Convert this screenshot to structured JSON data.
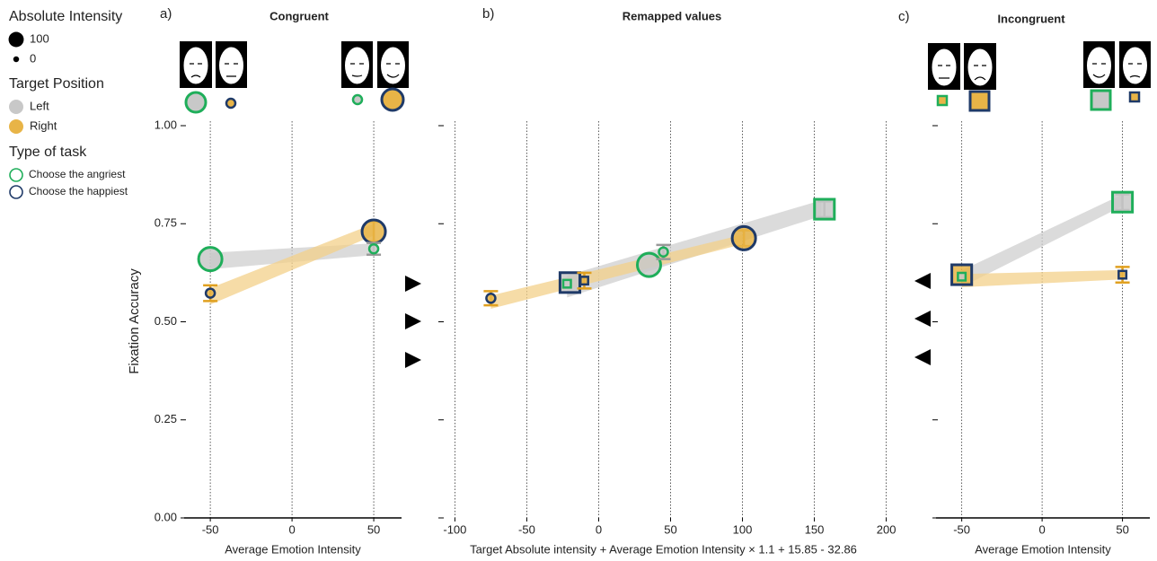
{
  "legend": {
    "size_title": "Absolute Intensity",
    "sizes": [
      100,
      0
    ],
    "position_title": "Target Position",
    "positions": [
      {
        "label": "Left",
        "color": "#c8c8c8"
      },
      {
        "label": "Right",
        "color": "#e8b447"
      }
    ],
    "task_title": "Type of task",
    "tasks": [
      {
        "label": "Choose the angriest",
        "color": "#1fae5a"
      },
      {
        "label": "Choose the happiest",
        "color": "#1f3a68"
      }
    ]
  },
  "chart_data": [
    {
      "type": "scatter",
      "panel": "a)",
      "title": "Congruent",
      "xlabel": "Average Emotion Intensity",
      "ylabel": "Fixation Accuracy",
      "xlim": [
        -66,
        67
      ],
      "xticks": [
        -50,
        0,
        50
      ],
      "ylim": [
        0,
        1
      ],
      "yticks": [
        {
          "value": 0,
          "label": "0.00"
        },
        {
          "value": 0.25,
          "label": "0.25"
        },
        {
          "value": 0.5,
          "label": "0.50"
        },
        {
          "value": 0.75,
          "label": "0.75"
        },
        {
          "value": 1,
          "label": "1.00"
        }
      ],
      "grid": true,
      "fits": [
        {
          "color": "#cfcfcf",
          "x": [
            -50,
            50
          ],
          "y": [
            0.655,
            0.685
          ],
          "se": 0.015
        },
        {
          "color": "#f3d08a",
          "x": [
            -50,
            50
          ],
          "y": [
            0.565,
            0.735
          ],
          "se": 0.015
        }
      ],
      "points": [
        {
          "x": -50,
          "y": 0.66,
          "size": 100,
          "shape": "circle",
          "fill": "#c8c8c8",
          "stroke": "#1fae5a"
        },
        {
          "x": -50,
          "y": 0.573,
          "size": 0,
          "shape": "circle",
          "fill": "#e8b447",
          "stroke": "#1f3a68",
          "error": 0.02
        },
        {
          "x": 50,
          "y": 0.73,
          "size": 100,
          "shape": "circle",
          "fill": "#e8b447",
          "stroke": "#1f3a68",
          "error": 0.025
        },
        {
          "x": 50,
          "y": 0.686,
          "size": 0,
          "shape": "circle",
          "fill": "#c8c8c8",
          "stroke": "#1fae5a",
          "error": 0.015
        }
      ]
    },
    {
      "type": "scatter",
      "panel": "b)",
      "title": "Remapped values",
      "xlabel": "Target Absolute intensity + Average Emotion Intensity × 1.1 + 15.85 - 32.86",
      "xlim": [
        -109,
        199
      ],
      "xticks": [
        -100,
        -50,
        0,
        50,
        100,
        150,
        200
      ],
      "ylim": [
        0,
        1
      ],
      "grid": true,
      "fits": [
        {
          "color": "#cfcfcf",
          "x": [
            -22,
            155
          ],
          "y": [
            0.59,
            0.79
          ],
          "se": 0.02
        },
        {
          "color": "#f3d08a",
          "x": [
            -75,
            100
          ],
          "y": [
            0.55,
            0.71
          ],
          "se": 0.012
        }
      ],
      "points": [
        {
          "x": -75,
          "y": 0.56,
          "size": 0,
          "shape": "circle",
          "fill": "#e8b447",
          "stroke": "#1f3a68",
          "error": 0.018
        },
        {
          "x": -20,
          "y": 0.6,
          "size": 100,
          "shape": "square",
          "fill": "#c8c8c8",
          "stroke": "#1f3a68"
        },
        {
          "x": -22,
          "y": 0.597,
          "size": 0,
          "shape": "square",
          "fill": "#c8c8c8",
          "stroke": "#1fae5a"
        },
        {
          "x": -10,
          "y": 0.605,
          "size": 0,
          "shape": "square",
          "fill": "#e8b447",
          "stroke": "#1f3a68",
          "error": 0.02
        },
        {
          "x": 35,
          "y": 0.645,
          "size": 100,
          "shape": "circle",
          "fill": "#c8c8c8",
          "stroke": "#1fae5a"
        },
        {
          "x": 45,
          "y": 0.678,
          "size": 0,
          "shape": "circle",
          "fill": "#c8c8c8",
          "stroke": "#1fae5a",
          "error": 0.018
        },
        {
          "x": 101,
          "y": 0.713,
          "size": 100,
          "shape": "circle",
          "fill": "#e8b447",
          "stroke": "#1f3a68",
          "error": 0.02
        },
        {
          "x": 157,
          "y": 0.787,
          "size": 100,
          "shape": "square",
          "fill": "#c8c8c8",
          "stroke": "#1fae5a",
          "error": 0.02
        }
      ]
    },
    {
      "type": "scatter",
      "panel": "c)",
      "title": "Incongruent",
      "xlabel": "Average Emotion Intensity",
      "xlim": [
        -66,
        67
      ],
      "xticks": [
        -50,
        0,
        50
      ],
      "ylim": [
        0,
        1
      ],
      "grid": true,
      "fits": [
        {
          "color": "#cfcfcf",
          "x": [
            -50,
            50
          ],
          "y": [
            0.61,
            0.81
          ],
          "se": 0.015
        },
        {
          "color": "#f3d08a",
          "x": [
            -50,
            50
          ],
          "y": [
            0.605,
            0.62
          ],
          "se": 0.012
        }
      ],
      "points": [
        {
          "x": -50,
          "y": 0.62,
          "size": 100,
          "shape": "square",
          "fill": "#e8b447",
          "stroke": "#1f3a68"
        },
        {
          "x": -50,
          "y": 0.615,
          "size": 0,
          "shape": "square",
          "fill": "#c8c8c8",
          "stroke": "#1fae5a"
        },
        {
          "x": 50,
          "y": 0.805,
          "size": 100,
          "shape": "square",
          "fill": "#c8c8c8",
          "stroke": "#1fae5a",
          "error": 0.02
        },
        {
          "x": 50,
          "y": 0.62,
          "size": 0,
          "shape": "square",
          "fill": "#e8b447",
          "stroke": "#1f3a68",
          "error": 0.02
        }
      ]
    }
  ]
}
